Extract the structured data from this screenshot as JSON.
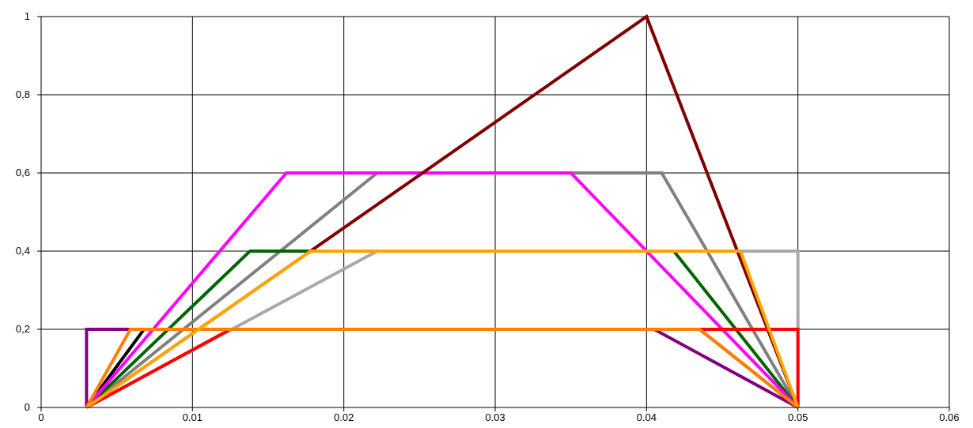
{
  "chart_data": {
    "type": "line",
    "title": "",
    "xlabel": "",
    "ylabel": "",
    "xlim": [
      0,
      0.06
    ],
    "ylim": [
      0,
      1
    ],
    "grid": true,
    "legend": "none",
    "x_ticks": [
      "0",
      "0.01",
      "0.02",
      "0.03",
      "0.04",
      "0.05",
      "0.06"
    ],
    "y_ticks": [
      "0",
      "0,2",
      "0,4",
      "0,6",
      "0,8",
      "1"
    ],
    "x_tick_values": [
      0,
      0.01,
      0.02,
      0.03,
      0.04,
      0.05,
      0.06
    ],
    "y_tick_values": [
      0,
      0.2,
      0.4,
      0.6,
      0.8,
      1
    ],
    "series": [
      {
        "color": "#800080",
        "points": [
          [
            0.003,
            0
          ],
          [
            0.003,
            0.2
          ],
          [
            0.0405,
            0.2
          ],
          [
            0.05,
            0
          ]
        ]
      },
      {
        "color": "#000000",
        "points": [
          [
            0.003,
            0
          ],
          [
            0.0068,
            0.2
          ],
          [
            0.0435,
            0.2
          ],
          [
            0.05,
            0
          ]
        ]
      },
      {
        "color": "#808080",
        "points": [
          [
            0.003,
            0
          ],
          [
            0.0222,
            0.6
          ],
          [
            0.041,
            0.6
          ],
          [
            0.05,
            0
          ]
        ]
      },
      {
        "color": "#A9A9A9",
        "points": [
          [
            0.003,
            0
          ],
          [
            0.0222,
            0.4
          ],
          [
            0.05,
            0.4
          ],
          [
            0.05,
            0
          ]
        ]
      },
      {
        "color": "#006400",
        "points": [
          [
            0.003,
            0
          ],
          [
            0.0138,
            0.4
          ],
          [
            0.0418,
            0.4
          ],
          [
            0.05,
            0
          ]
        ]
      },
      {
        "color": "#FF00FF",
        "points": [
          [
            0.003,
            0
          ],
          [
            0.0162,
            0.6
          ],
          [
            0.035,
            0.6
          ],
          [
            0.05,
            0
          ]
        ]
      },
      {
        "color": "#800000",
        "points": [
          [
            0.003,
            0
          ],
          [
            0.04,
            1
          ],
          [
            0.05,
            0
          ]
        ]
      },
      {
        "color": "#FF0000",
        "points": [
          [
            0.003,
            0
          ],
          [
            0.0125,
            0.2
          ],
          [
            0.05,
            0.2
          ],
          [
            0.05,
            0
          ]
        ]
      },
      {
        "color": "#FF7F00",
        "points": [
          [
            0.003,
            0
          ],
          [
            0.0059,
            0.2
          ],
          [
            0.0435,
            0.2
          ],
          [
            0.05,
            0
          ]
        ]
      },
      {
        "color": "#FFA500",
        "points": [
          [
            0.003,
            0
          ],
          [
            0.0178,
            0.4
          ],
          [
            0.0462,
            0.4
          ],
          [
            0.05,
            0
          ]
        ]
      }
    ]
  }
}
